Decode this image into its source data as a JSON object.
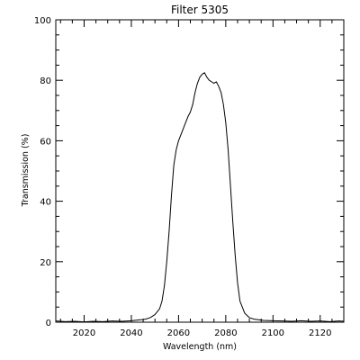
{
  "chart_data": {
    "type": "line",
    "title": "Filter 5305",
    "xlabel": "Wavelength (nm)",
    "ylabel": "Transmission (%)",
    "xlim": [
      2008,
      2130
    ],
    "ylim": [
      0,
      100
    ],
    "x_ticks": [
      2020,
      2040,
      2060,
      2080,
      2100,
      2120
    ],
    "x_tick_labels": [
      "2020",
      "2040",
      "2060",
      "2080",
      "2100",
      "2120"
    ],
    "y_ticks": [
      0,
      20,
      40,
      60,
      80,
      100
    ],
    "y_tick_labels": [
      "0",
      "20",
      "40",
      "60",
      "80",
      "100"
    ],
    "grid": false,
    "line_color": "#000000",
    "series": [
      {
        "x": [
          2008,
          2012,
          2016,
          2020,
          2024,
          2028,
          2032,
          2036,
          2040,
          2044,
          2046,
          2048,
          2050,
          2052,
          2053,
          2054,
          2055,
          2056,
          2057,
          2058,
          2059,
          2060,
          2061,
          2062,
          2063,
          2064,
          2065,
          2066,
          2067,
          2068,
          2069,
          2070,
          2071,
          2072,
          2073,
          2074,
          2075,
          2076,
          2077,
          2078,
          2079,
          2080,
          2081,
          2082,
          2083,
          2084,
          2085,
          2086,
          2088,
          2090,
          2092,
          2096,
          2100,
          2104,
          2108,
          2112,
          2116,
          2120,
          2124,
          2128,
          2130
        ],
        "y": [
          0.4,
          0.2,
          0.3,
          0.1,
          0.3,
          0.2,
          0.4,
          0.3,
          0.5,
          0.8,
          1.0,
          1.5,
          2.5,
          4.5,
          7,
          12,
          20,
          30,
          42,
          52,
          57,
          60,
          62,
          64,
          66,
          68,
          69.5,
          72,
          76,
          79,
          81,
          82,
          82.5,
          81,
          80,
          79.5,
          79,
          79.5,
          78,
          76,
          72,
          66,
          57,
          45,
          33,
          22,
          13,
          7,
          3,
          1.5,
          1,
          0.6,
          0.5,
          0.4,
          0.3,
          0.5,
          0.3,
          0.4,
          0.2,
          0.4,
          0.3
        ]
      }
    ]
  }
}
